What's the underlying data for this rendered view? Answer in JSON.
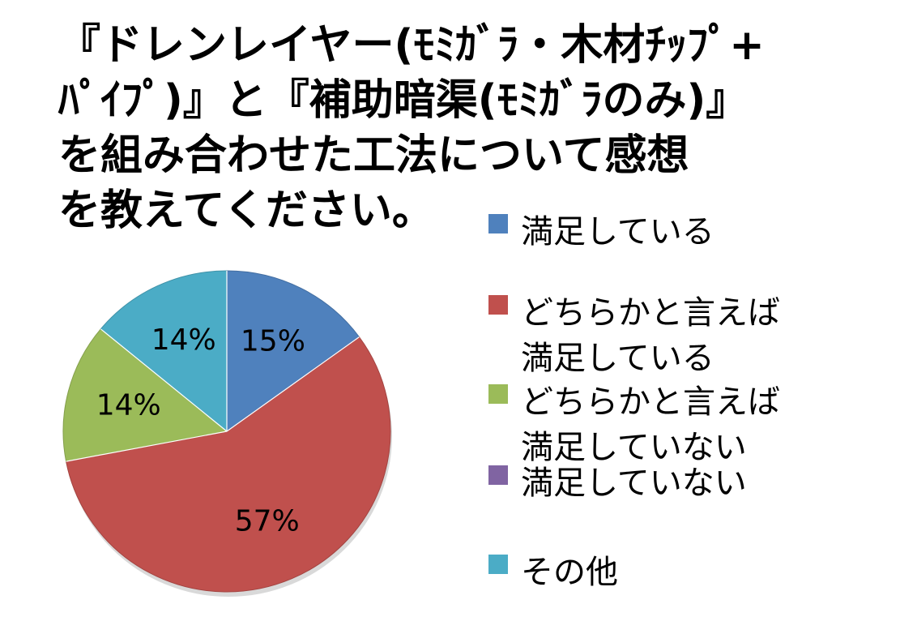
{
  "chart_data": {
    "type": "pie",
    "title_lines": [
      "『ドレンレイヤー(ﾓﾐｶﾞﾗ・木材ﾁｯﾌﾟ+",
      "ﾊﾟｲﾌﾟ)』と『補助暗渠(ﾓﾐｶﾞﾗのみ)』",
      "を組み合わせた工法について感想",
      "を教えてください。"
    ],
    "slices": [
      {
        "label": "満足している",
        "value": 15,
        "data_label": "15%",
        "color": "#4F81BD"
      },
      {
        "label": "どちらかと言えば満足している",
        "value": 57,
        "data_label": "57%",
        "color": "#C0504D"
      },
      {
        "label": "どちらかと言えば満足していない",
        "value": 14,
        "data_label": "14%",
        "color": "#9BBB59"
      },
      {
        "label": "満足していない",
        "value": 0,
        "data_label": "",
        "color": "#8064A2"
      },
      {
        "label": "その他",
        "value": 14,
        "data_label": "14%",
        "color": "#4BACC6"
      }
    ],
    "legend": {
      "position": "right",
      "items": [
        {
          "lines": [
            "満足している"
          ],
          "color": "#4F81BD"
        },
        {
          "lines": [
            "どちらかと言えば",
            "満足している"
          ],
          "color": "#C0504D"
        },
        {
          "lines": [
            "どちらかと言えば",
            "満足していない"
          ],
          "color": "#9BBB59"
        },
        {
          "lines": [
            "満足していない"
          ],
          "color": "#8064A2"
        },
        {
          "lines": [
            "その他"
          ],
          "color": "#4BACC6"
        }
      ]
    }
  }
}
